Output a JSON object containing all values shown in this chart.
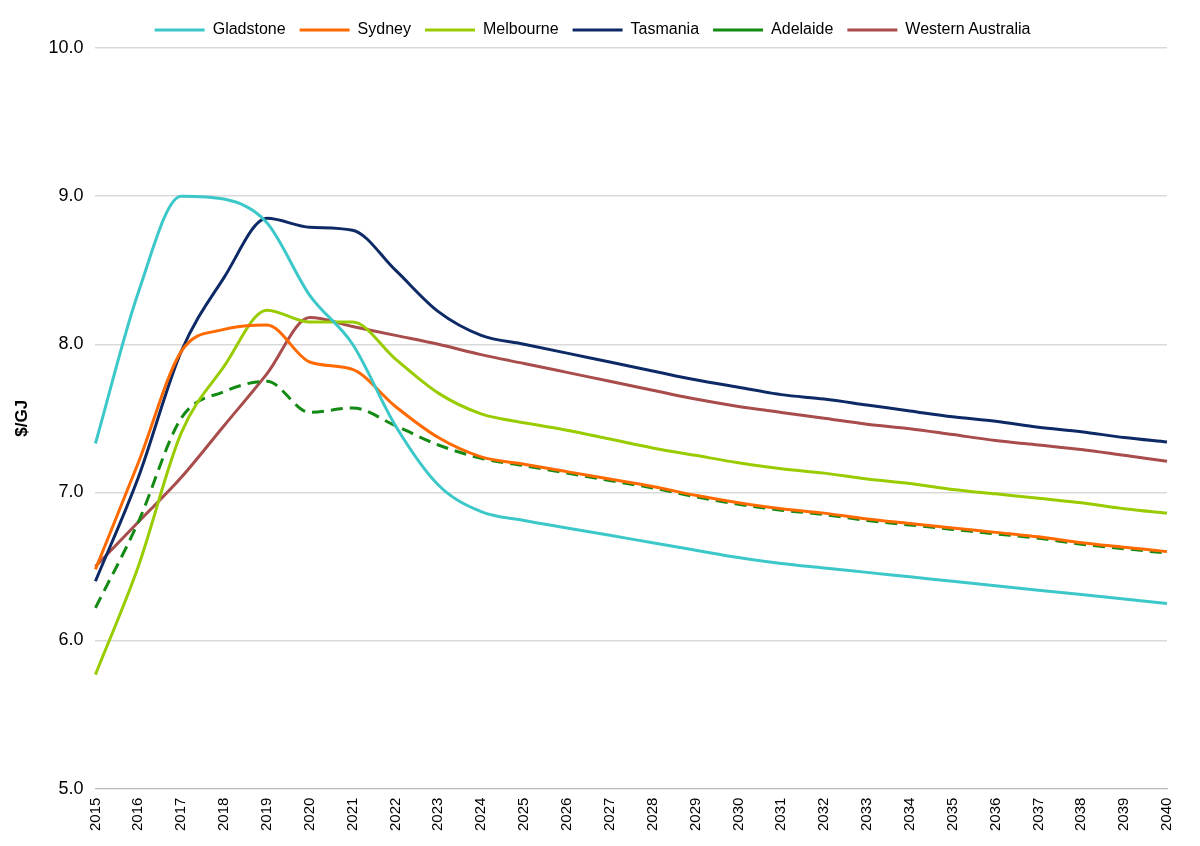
{
  "chart_data": {
    "type": "line",
    "ylabel": "$/GJ",
    "categories": [
      "2015",
      "2016",
      "2017",
      "2018",
      "2019",
      "2020",
      "2021",
      "2022",
      "2023",
      "2024",
      "2025",
      "2026",
      "2027",
      "2028",
      "2029",
      "2030",
      "2031",
      "2032",
      "2033",
      "2034",
      "2035",
      "2036",
      "2037",
      "2038",
      "2039",
      "2040"
    ],
    "series": [
      {
        "name": "Gladstone",
        "color": "#3cc8c8",
        "values": [
          7.33,
          8.35,
          9.0,
          8.98,
          8.82,
          8.33,
          8.0,
          7.45,
          7.05,
          6.87,
          6.81,
          6.76,
          6.71,
          6.66,
          6.61,
          6.56,
          6.52,
          6.49,
          6.46,
          6.43,
          6.4,
          6.37,
          6.34,
          6.31,
          6.28,
          6.25
        ]
      },
      {
        "name": "Sydney",
        "color": "#ff6a00",
        "values": [
          6.48,
          7.2,
          7.95,
          8.1,
          8.13,
          7.88,
          7.83,
          7.58,
          7.37,
          7.24,
          7.19,
          7.14,
          7.09,
          7.04,
          6.98,
          6.93,
          6.89,
          6.86,
          6.82,
          6.79,
          6.76,
          6.73,
          6.7,
          6.66,
          6.63,
          6.6
        ]
      },
      {
        "name": "Melbourne",
        "color": "#99cc00",
        "values": [
          5.77,
          6.5,
          7.4,
          7.85,
          8.23,
          8.15,
          8.15,
          7.9,
          7.67,
          7.53,
          7.47,
          7.42,
          7.36,
          7.3,
          7.25,
          7.2,
          7.16,
          7.13,
          7.09,
          7.06,
          7.02,
          6.99,
          6.96,
          6.93,
          6.89,
          6.86
        ]
      },
      {
        "name": "Tasmania",
        "color": "#0d2a66",
        "values": [
          6.4,
          7.1,
          7.95,
          8.45,
          8.85,
          8.79,
          8.77,
          8.5,
          8.22,
          8.06,
          8.0,
          7.94,
          7.88,
          7.82,
          7.76,
          7.71,
          7.66,
          7.63,
          7.59,
          7.55,
          7.51,
          7.48,
          7.44,
          7.41,
          7.37,
          7.34
        ]
      },
      {
        "name": "Adelaide",
        "color": "#138a13",
        "line_style": "dashed",
        "values": [
          6.22,
          6.8,
          7.5,
          7.68,
          7.75,
          7.54,
          7.57,
          7.45,
          7.32,
          7.23,
          7.18,
          7.13,
          7.08,
          7.03,
          6.97,
          6.92,
          6.88,
          6.85,
          6.81,
          6.78,
          6.75,
          6.72,
          6.69,
          6.65,
          6.62,
          6.59
        ]
      },
      {
        "name": "Western Australia",
        "color": "#a84c4c",
        "values": [
          6.5,
          6.8,
          7.1,
          7.45,
          7.8,
          8.18,
          8.12,
          8.06,
          8.0,
          7.93,
          7.87,
          7.81,
          7.75,
          7.69,
          7.63,
          7.58,
          7.54,
          7.5,
          7.46,
          7.43,
          7.39,
          7.35,
          7.32,
          7.29,
          7.25,
          7.21
        ]
      }
    ],
    "ylim": [
      5,
      10
    ],
    "yticks": [
      {
        "value": 5,
        "label": "5.0"
      },
      {
        "value": 6,
        "label": "6.0"
      },
      {
        "value": 7,
        "label": "7.0"
      },
      {
        "value": 8,
        "label": "8.0"
      },
      {
        "value": 9,
        "label": "9.0"
      },
      {
        "value": 10,
        "label": "10.0"
      }
    ],
    "grid": "y",
    "legend": "top",
    "marker": "none",
    "line_style": "solid"
  }
}
